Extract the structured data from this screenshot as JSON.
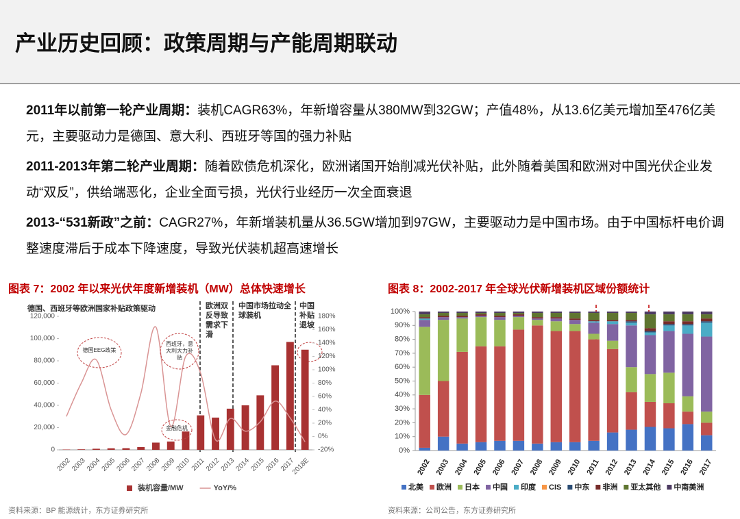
{
  "header": {
    "title": "产业历史回顾：政策周期与产能周期联动"
  },
  "paragraphs": [
    {
      "lead": "2011年以前第一轮产业周期：",
      "text": "装机CAGR63%，年新增容量从380MW到32GW；产值48%，从13.6亿美元增加至476亿美元，主要驱动力是德国、意大利、西班牙等国的强力补贴"
    },
    {
      "lead": "2011-2013年第二轮产业周期：",
      "text": "随着欧债危机深化，欧洲诸国开始削减光伏补贴，此外随着美国和欧洲对中国光伏企业发动“双反”，供给端恶化，企业全面亏损，光伏行业经历一次全面衰退"
    },
    {
      "lead": "2013-“531新政”之前：",
      "text": "CAGR27%，年新增装机量从36.5GW增加到97GW，主要驱动力是中国市场。由于中国标杆电价调整速度滞后于成本下降速度，导致光伏装机超高速增长"
    }
  ],
  "chart_data": [
    {
      "type": "combo",
      "title": "图表 7：2002 年以来光伏年度新增装机（MW）总体快速增长",
      "categories": [
        "2002",
        "2003",
        "2004",
        "2005",
        "2006",
        "2007",
        "2008",
        "2009",
        "2010",
        "2011",
        "2012",
        "2013",
        "2014",
        "2015",
        "2016",
        "2017",
        "2018E"
      ],
      "series": [
        {
          "name": "装机容量/MW",
          "type": "bar",
          "color": "#a83232",
          "values": [
            300,
            500,
            1000,
            1400,
            1500,
            2500,
            6500,
            7500,
            16500,
            31000,
            29000,
            37000,
            40000,
            49000,
            76000,
            97000,
            90000
          ]
        },
        {
          "name": "YoY/%",
          "type": "line",
          "axis": "y2",
          "color": "#d99494",
          "values": [
            30,
            80,
            115,
            40,
            3,
            65,
            164,
            15,
            120,
            95,
            -5,
            27,
            8,
            22,
            53,
            28,
            -8
          ]
        }
      ],
      "ylim": [
        0,
        120000
      ],
      "yticks": [
        0,
        {
          "value": 20000,
          "label": "20,000"
        },
        {
          "value": 40000,
          "label": "40,000"
        },
        {
          "value": 60000,
          "label": "60,000"
        },
        {
          "value": 80000,
          "label": "80,000"
        },
        {
          "value": 100000,
          "label": "100,000"
        },
        {
          "value": 120000,
          "label": "120,000"
        }
      ],
      "y2lim": [
        -20,
        180
      ],
      "y2ticks": [
        {
          "value": -20,
          "label": "-20%"
        },
        {
          "value": 0,
          "label": "0%"
        },
        {
          "value": 20,
          "label": "20%"
        },
        {
          "value": 40,
          "label": "40%"
        },
        {
          "value": 60,
          "label": "60%"
        },
        {
          "value": 80,
          "label": "80%"
        },
        {
          "value": 100,
          "label": "100%"
        },
        {
          "value": 120,
          "label": "120%"
        },
        {
          "value": 140,
          "label": "140%"
        },
        {
          "value": 160,
          "label": "160%"
        },
        {
          "value": 180,
          "label": "180%"
        }
      ],
      "annotations": [
        "德国、西班牙等欧洲国家补贴政策驱动",
        "欧洲双反导致需求下滑",
        "中国市场拉动全球装机",
        "中国补贴退坡",
        "德国EEG政策",
        "西班牙，意大利大力补贴",
        "金融危机"
      ],
      "source": "资料来源：BP 能源统计，东方证券研究所"
    },
    {
      "type": "stacked",
      "title": "图表 8：2002-2017 年全球光伏新增装机区域份额统计",
      "categories": [
        "2002",
        "2003",
        "2004",
        "2005",
        "2006",
        "2007",
        "2008",
        "2009",
        "2010",
        "2011",
        "2012",
        "2013",
        "2014",
        "2015",
        "2016",
        "2017"
      ],
      "series": [
        {
          "name": "北美",
          "color": "#4472c4",
          "values": [
            2,
            10,
            5,
            6,
            7,
            7,
            5,
            6,
            6,
            7,
            13,
            15,
            17,
            16,
            19,
            11
          ]
        },
        {
          "name": "欧洲",
          "color": "#c0504d",
          "values": [
            38,
            40,
            66,
            69,
            68,
            80,
            85,
            80,
            80,
            73,
            60,
            27,
            18,
            18,
            9,
            9
          ]
        },
        {
          "name": "日本",
          "color": "#9bbb59",
          "values": [
            49,
            44,
            24,
            21,
            19,
            9,
            4,
            7,
            5,
            4,
            6,
            18,
            20,
            22,
            11,
            8
          ]
        },
        {
          "name": "中国",
          "color": "#8064a2",
          "values": [
            5,
            2,
            1,
            1,
            2,
            1,
            1,
            2,
            3,
            8,
            12,
            30,
            28,
            30,
            45,
            54
          ]
        },
        {
          "name": "印度",
          "color": "#4bacc6",
          "values": [
            1,
            0,
            0,
            0,
            0,
            0,
            0,
            0,
            0,
            1,
            2,
            2,
            2,
            4,
            6,
            10
          ]
        },
        {
          "name": "CIS",
          "color": "#f79646",
          "values": [
            0,
            0,
            0,
            0,
            0,
            0,
            0,
            0,
            0,
            0,
            0,
            0,
            0,
            0,
            0,
            0
          ]
        },
        {
          "name": "中东",
          "color": "#2c4d75",
          "values": [
            0,
            0,
            0,
            0,
            0,
            0,
            0,
            0,
            0,
            0,
            0,
            1,
            1,
            1,
            1,
            1
          ]
        },
        {
          "name": "非洲",
          "color": "#772c2a",
          "values": [
            1,
            1,
            1,
            1,
            1,
            1,
            1,
            1,
            1,
            1,
            1,
            1,
            2,
            2,
            2,
            2
          ]
        },
        {
          "name": "亚太其他",
          "color": "#5f7530",
          "values": [
            2,
            2,
            2,
            1,
            2,
            1,
            3,
            3,
            4,
            5,
            5,
            5,
            10,
            5,
            5,
            3
          ]
        },
        {
          "name": "中南美洲",
          "color": "#4d3b62",
          "values": [
            2,
            1,
            1,
            1,
            1,
            1,
            1,
            1,
            1,
            1,
            1,
            1,
            2,
            2,
            2,
            2
          ]
        }
      ],
      "ylim": [
        0,
        100
      ],
      "yticks": [
        {
          "value": 0,
          "label": "0%"
        },
        {
          "value": 10,
          "label": "10%"
        },
        {
          "value": 20,
          "label": "20%"
        },
        {
          "value": 30,
          "label": "30%"
        },
        {
          "value": 40,
          "label": "40%"
        },
        {
          "value": 50,
          "label": "50%"
        },
        {
          "value": 60,
          "label": "60%"
        },
        {
          "value": 70,
          "label": "70%"
        },
        {
          "value": 80,
          "label": "80%"
        },
        {
          "value": 90,
          "label": "90%"
        },
        {
          "value": 100,
          "label": "100%"
        }
      ],
      "source": "资料来源：公司公告，东方证券研究所"
    }
  ]
}
